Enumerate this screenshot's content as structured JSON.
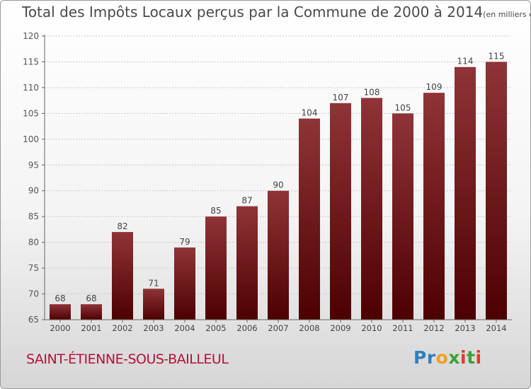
{
  "header": {
    "title": "Total des Impôts Locaux perçus par la Commune de 2000 à 2014",
    "unit_note": "(en milliers d'€)"
  },
  "footer": {
    "commune": "SAINT-ÉTIENNE-SOUS-BAILLEUL",
    "brand": "Proxiti"
  },
  "colors": {
    "bar_top": "#8f3438",
    "bar_bottom": "#4d0000",
    "commune_text": "#b0123c"
  },
  "chart_data": {
    "type": "bar",
    "categories": [
      "2000",
      "2001",
      "2002",
      "2003",
      "2004",
      "2005",
      "2006",
      "2007",
      "2008",
      "2009",
      "2010",
      "2011",
      "2012",
      "2013",
      "2014"
    ],
    "values": [
      68,
      68,
      82,
      71,
      79,
      85,
      87,
      90,
      104,
      107,
      108,
      105,
      109,
      114,
      115
    ],
    "title": "Total des Impôts Locaux perçus par la Commune de 2000 à 2014",
    "xlabel": "",
    "ylabel": "",
    "ylim": [
      65,
      120
    ],
    "yticks": [
      65,
      70,
      75,
      80,
      85,
      90,
      95,
      100,
      105,
      110,
      115,
      120
    ],
    "grid": true,
    "data_labels": true
  }
}
